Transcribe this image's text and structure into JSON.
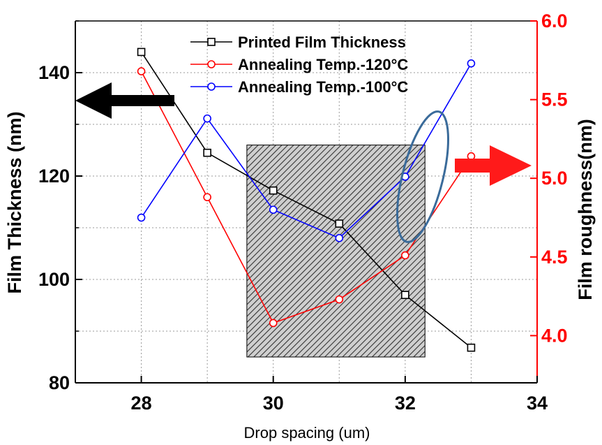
{
  "chart_data": {
    "type": "line",
    "xlabel": "Drop spacing (um)",
    "ylabel_left": "Film Thickness (nm)",
    "ylabel_right": "Film roughness(nm)",
    "xlim": [
      27,
      34
    ],
    "ylim_left": [
      80,
      150
    ],
    "ylim_right": [
      3.7,
      6.0
    ],
    "x_ticks": [
      28,
      30,
      32,
      34
    ],
    "y_left_ticks": [
      80,
      100,
      120,
      140
    ],
    "y_right_ticks": [
      "4.0",
      "4.5",
      "5.0",
      "5.5",
      "6.0"
    ],
    "grid": true,
    "legend_position": "top-center",
    "series": [
      {
        "name": "Printed Film Thickness",
        "axis": "left",
        "color": "#000000",
        "marker": "square",
        "x": [
          28,
          29,
          30,
          31,
          32,
          33
        ],
        "y": [
          144,
          124.5,
          117.2,
          110.8,
          97,
          86.8
        ]
      },
      {
        "name": "Annealing Temp.-120°C",
        "axis": "right",
        "color": "#ff0000",
        "marker": "circle",
        "x": [
          28,
          29,
          30,
          31,
          32,
          33
        ],
        "y": [
          5.68,
          4.88,
          4.08,
          4.23,
          4.51,
          5.14
        ]
      },
      {
        "name": "Annealing Temp.-100°C",
        "axis": "right",
        "color": "#0000ff",
        "marker": "circle",
        "x": [
          28,
          29,
          30,
          31,
          32,
          33
        ],
        "y": [
          4.75,
          5.38,
          4.8,
          4.62,
          5.01,
          5.73
        ]
      }
    ],
    "annotations": [
      {
        "type": "hatched-region",
        "x": [
          29.6,
          32.3
        ],
        "y_left": [
          85,
          126
        ]
      },
      {
        "type": "ellipse",
        "center_x": 32.3,
        "center_y_left": 123,
        "color": "#3a6b9a"
      },
      {
        "type": "arrow",
        "direction": "left",
        "color": "#000000",
        "points_to": "left-axis"
      },
      {
        "type": "arrow",
        "direction": "right",
        "color": "#ff0000",
        "points_to": "right-axis"
      }
    ]
  }
}
